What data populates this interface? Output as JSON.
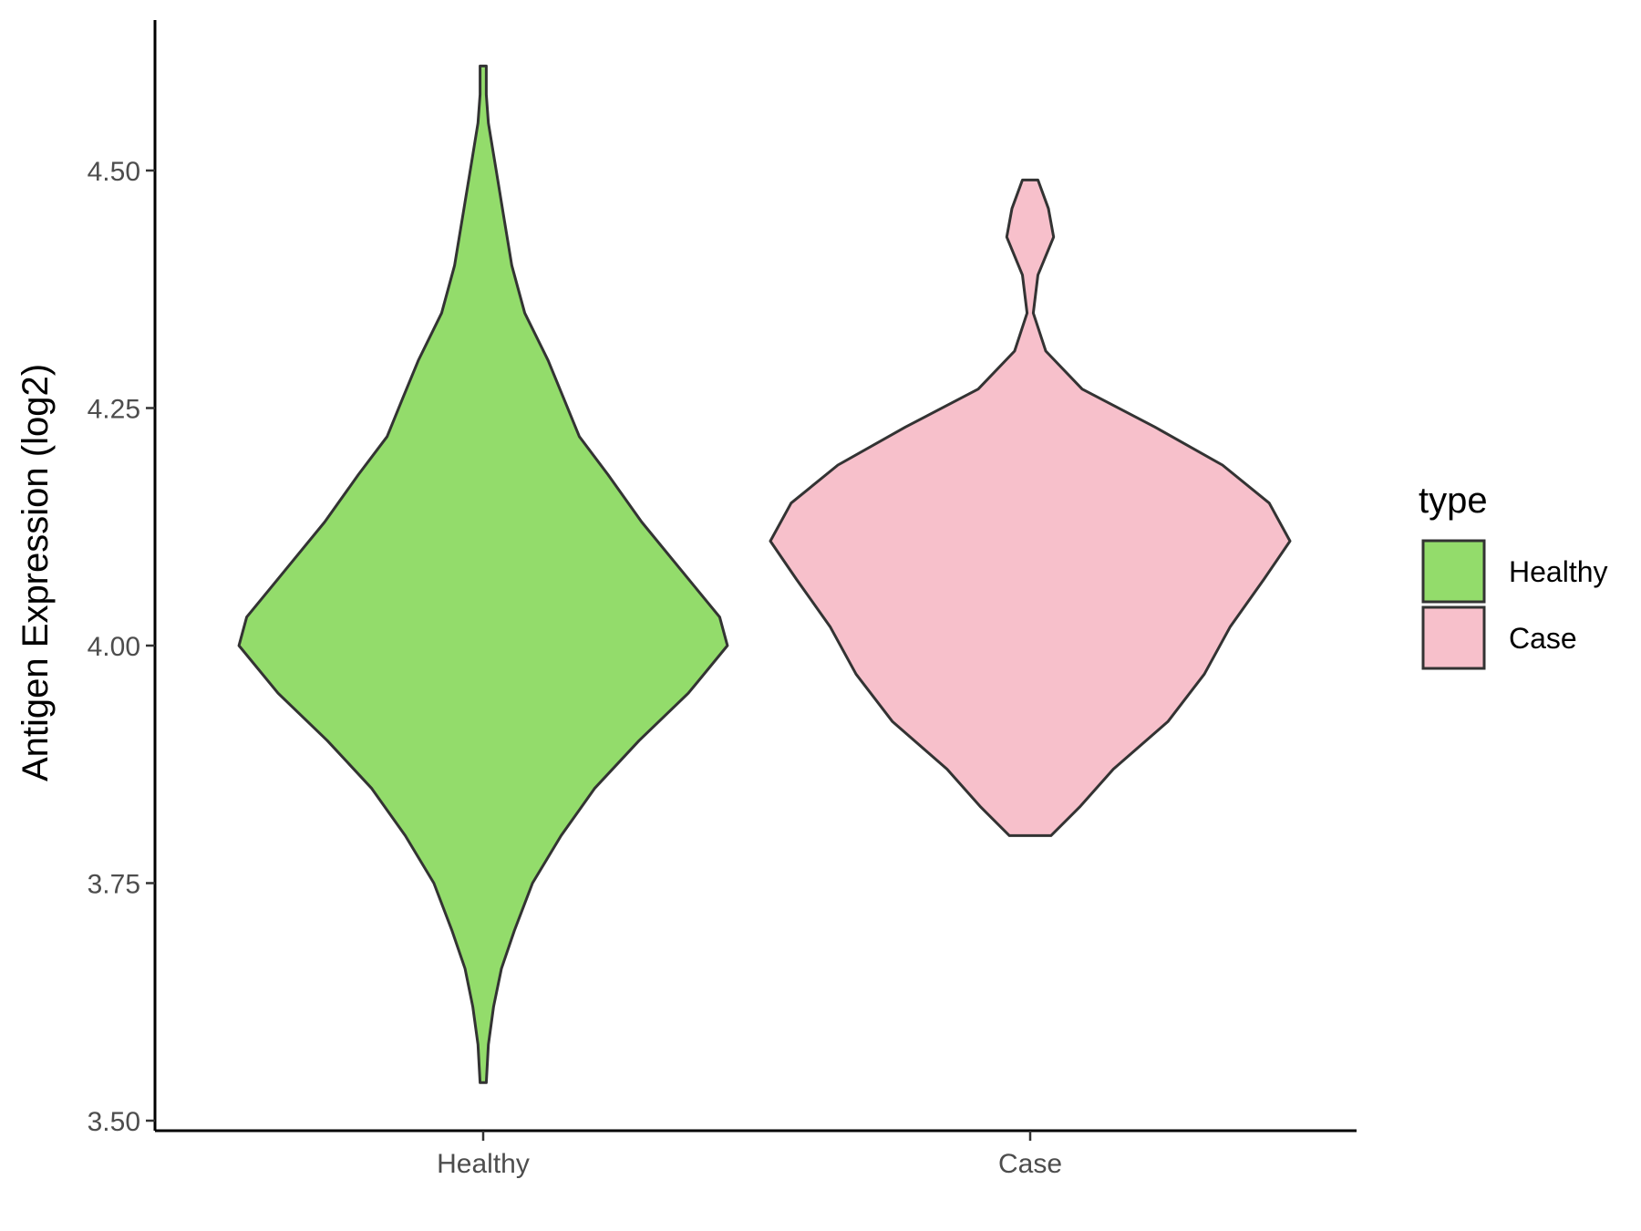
{
  "chart_data": {
    "type": "violin",
    "xlabel": "",
    "ylabel": "Antigen Expression (log2)",
    "ylim": [
      3.49,
      4.66
    ],
    "yticks": [
      3.5,
      3.75,
      4.0,
      4.25,
      4.5
    ],
    "ytick_labels": [
      "3.50",
      "3.75",
      "4.00",
      "4.25",
      "4.50"
    ],
    "categories": [
      "Healthy",
      "Case"
    ],
    "grid": false,
    "legend": {
      "title": "type",
      "position": "right",
      "entries": [
        {
          "label": "Healthy",
          "color": "#93dc6b"
        },
        {
          "label": "Case",
          "color": "#f7c0cb"
        }
      ]
    },
    "series": [
      {
        "name": "Healthy",
        "color": "#93dc6b",
        "min": 3.54,
        "max": 4.61,
        "profile": [
          [
            3.54,
            0.01
          ],
          [
            3.58,
            0.02
          ],
          [
            3.62,
            0.04
          ],
          [
            3.66,
            0.07
          ],
          [
            3.7,
            0.12
          ],
          [
            3.75,
            0.19
          ],
          [
            3.8,
            0.3
          ],
          [
            3.85,
            0.43
          ],
          [
            3.9,
            0.6
          ],
          [
            3.95,
            0.79
          ],
          [
            4.0,
            0.94
          ],
          [
            4.03,
            0.91
          ],
          [
            4.08,
            0.76
          ],
          [
            4.13,
            0.61
          ],
          [
            4.18,
            0.48
          ],
          [
            4.22,
            0.37
          ],
          [
            4.26,
            0.31
          ],
          [
            4.3,
            0.25
          ],
          [
            4.35,
            0.16
          ],
          [
            4.4,
            0.11
          ],
          [
            4.45,
            0.08
          ],
          [
            4.5,
            0.05
          ],
          [
            4.55,
            0.02
          ],
          [
            4.58,
            0.01
          ],
          [
            4.61,
            0.01
          ]
        ]
      },
      {
        "name": "Case",
        "color": "#f7c0cb",
        "min": 3.8,
        "max": 4.49,
        "profile": [
          [
            3.8,
            0.08
          ],
          [
            3.83,
            0.19
          ],
          [
            3.87,
            0.32
          ],
          [
            3.92,
            0.53
          ],
          [
            3.97,
            0.67
          ],
          [
            4.02,
            0.77
          ],
          [
            4.07,
            0.9
          ],
          [
            4.11,
            1.0
          ],
          [
            4.15,
            0.92
          ],
          [
            4.19,
            0.74
          ],
          [
            4.23,
            0.48
          ],
          [
            4.27,
            0.2
          ],
          [
            4.31,
            0.06
          ],
          [
            4.35,
            0.0
          ],
          [
            4.39,
            0.03
          ],
          [
            4.43,
            0.09
          ],
          [
            4.46,
            0.07
          ],
          [
            4.49,
            0.03
          ]
        ]
      }
    ]
  }
}
